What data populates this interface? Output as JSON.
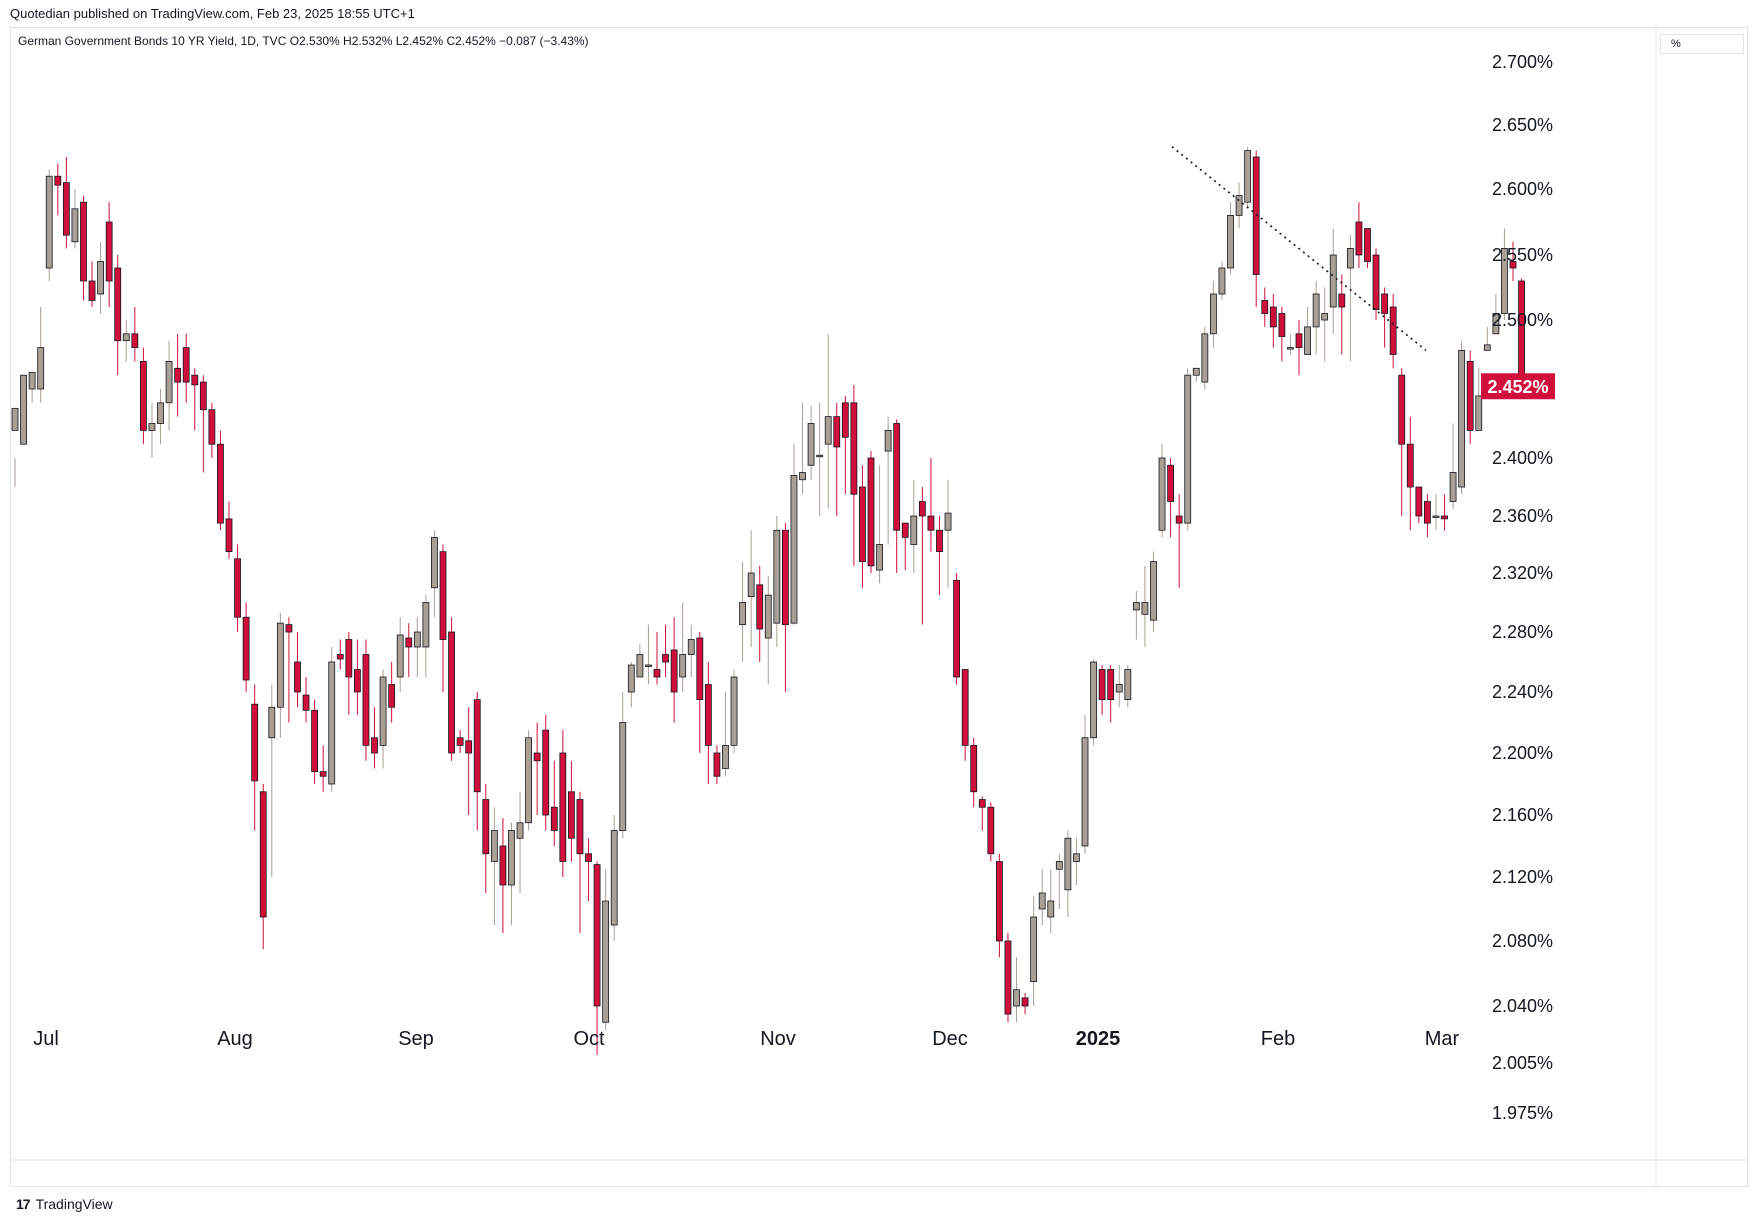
{
  "header": {
    "published": "Quotedian published on TradingView.com, Feb 23, 2025 18:55 UTC+1",
    "symbol_line": "German Government Bonds 10 YR Yield, 1D, TVC  O2.530%  H2.532%  L2.452%  C2.452%  −0.087 (−3.43%)"
  },
  "scale_button": "%",
  "footer": {
    "logo": "17",
    "brand": "TradingView"
  },
  "colors": {
    "up": "#a89f95",
    "down": "#d0103a",
    "label_bg": "#d0103a"
  },
  "chart_data": {
    "type": "candlestick",
    "y_ticks": [
      "2.700%",
      "2.650%",
      "2.600%",
      "2.550%",
      "2.500%",
      "2.400%",
      "2.360%",
      "2.320%",
      "2.280%",
      "2.240%",
      "2.200%",
      "2.160%",
      "2.120%",
      "2.080%",
      "2.040%",
      "2.005%",
      "1.975%"
    ],
    "x_ticks": [
      "Jul",
      "Aug",
      "Sep",
      "Oct",
      "Nov",
      "Dec",
      "2025",
      "Feb",
      "Mar"
    ],
    "last_price_label": "2.452%",
    "trendline": {
      "style": "dotted",
      "from": [
        2.633,
        2.633
      ],
      "to": [
        2.478,
        2.478
      ]
    },
    "candles": [
      [
        2.42,
        2.436,
        2.4,
        2.38
      ],
      [
        2.41,
        2.46,
        2.46,
        2.41
      ],
      [
        2.45,
        2.462,
        2.452,
        2.44
      ],
      [
        2.45,
        2.48,
        2.51,
        2.44
      ],
      [
        2.54,
        2.61,
        2.615,
        2.53
      ],
      [
        2.61,
        2.603,
        2.62,
        2.58
      ],
      [
        2.605,
        2.565,
        2.625,
        2.555
      ],
      [
        2.56,
        2.585,
        2.6,
        2.555
      ],
      [
        2.59,
        2.53,
        2.595,
        2.515
      ],
      [
        2.53,
        2.515,
        2.545,
        2.51
      ],
      [
        2.52,
        2.545,
        2.56,
        2.505
      ],
      [
        2.575,
        2.53,
        2.59,
        2.51
      ],
      [
        2.54,
        2.485,
        2.55,
        2.46
      ],
      [
        2.485,
        2.49,
        2.5,
        2.47
      ],
      [
        2.49,
        2.48,
        2.51,
        2.47
      ],
      [
        2.47,
        2.42,
        2.48,
        2.41
      ],
      [
        2.42,
        2.425,
        2.44,
        2.4
      ],
      [
        2.425,
        2.44,
        2.45,
        2.41
      ],
      [
        2.44,
        2.47,
        2.485,
        2.42
      ],
      [
        2.465,
        2.455,
        2.49,
        2.43
      ],
      [
        2.48,
        2.455,
        2.49,
        2.44
      ],
      [
        2.46,
        2.453,
        2.465,
        2.42
      ],
      [
        2.455,
        2.435,
        2.46,
        2.39
      ],
      [
        2.435,
        2.41,
        2.44,
        2.4
      ],
      [
        2.41,
        2.355,
        2.42,
        2.35
      ],
      [
        2.358,
        2.335,
        2.37,
        2.33
      ],
      [
        2.33,
        2.29,
        2.34,
        2.28
      ],
      [
        2.29,
        2.248,
        2.3,
        2.24
      ],
      [
        2.232,
        2.182,
        2.245,
        2.15
      ],
      [
        2.175,
        2.095,
        2.18,
        2.075
      ],
      [
        2.21,
        2.23,
        2.245,
        2.12
      ],
      [
        2.23,
        2.286,
        2.293,
        2.21
      ],
      [
        2.285,
        2.28,
        2.29,
        2.22
      ],
      [
        2.26,
        2.24,
        2.28,
        2.23
      ],
      [
        2.238,
        2.228,
        2.25,
        2.22
      ],
      [
        2.228,
        2.188,
        2.235,
        2.18
      ],
      [
        2.188,
        2.185,
        2.205,
        2.175
      ],
      [
        2.18,
        2.26,
        2.27,
        2.175
      ],
      [
        2.265,
        2.262,
        2.275,
        2.255
      ],
      [
        2.275,
        2.25,
        2.28,
        2.225
      ],
      [
        2.255,
        2.24,
        2.275,
        2.225
      ],
      [
        2.265,
        2.205,
        2.275,
        2.195
      ],
      [
        2.21,
        2.2,
        2.23,
        2.19
      ],
      [
        2.205,
        2.25,
        2.255,
        2.19
      ],
      [
        2.245,
        2.23,
        2.26,
        2.22
      ],
      [
        2.25,
        2.278,
        2.29,
        2.24
      ],
      [
        2.276,
        2.27,
        2.286,
        2.25
      ],
      [
        2.27,
        2.28,
        2.29,
        2.25
      ],
      [
        2.27,
        2.3,
        2.305,
        2.25
      ],
      [
        2.31,
        2.345,
        2.35,
        2.29
      ],
      [
        2.335,
        2.275,
        2.34,
        2.24
      ],
      [
        2.28,
        2.2,
        2.29,
        2.195
      ],
      [
        2.21,
        2.205,
        2.215,
        2.2
      ],
      [
        2.208,
        2.2,
        2.23,
        2.16
      ],
      [
        2.235,
        2.175,
        2.24,
        2.15
      ],
      [
        2.17,
        2.135,
        2.18,
        2.11
      ],
      [
        2.13,
        2.15,
        2.165,
        2.09
      ],
      [
        2.14,
        2.115,
        2.158,
        2.085
      ],
      [
        2.115,
        2.15,
        2.155,
        2.09
      ],
      [
        2.145,
        2.155,
        2.175,
        2.11
      ],
      [
        2.155,
        2.21,
        2.215,
        2.15
      ],
      [
        2.2,
        2.195,
        2.22,
        2.16
      ],
      [
        2.215,
        2.16,
        2.225,
        2.15
      ],
      [
        2.165,
        2.15,
        2.195,
        2.14
      ],
      [
        2.2,
        2.13,
        2.215,
        2.12
      ],
      [
        2.175,
        2.145,
        2.195,
        2.13
      ],
      [
        2.17,
        2.135,
        2.175,
        2.085
      ],
      [
        2.135,
        2.13,
        2.145,
        2.105
      ],
      [
        2.128,
        2.04,
        2.13,
        2.01
      ],
      [
        2.03,
        2.105,
        2.125,
        2.025
      ],
      [
        2.09,
        2.15,
        2.16,
        2.08
      ],
      [
        2.15,
        2.22,
        2.24,
        2.145
      ],
      [
        2.24,
        2.258,
        2.26,
        2.23
      ],
      [
        2.25,
        2.265,
        2.272,
        2.25
      ],
      [
        2.258,
        2.258,
        2.285,
        2.245
      ],
      [
        2.255,
        2.25,
        2.28,
        2.245
      ],
      [
        2.265,
        2.26,
        2.285,
        2.25
      ],
      [
        2.268,
        2.24,
        2.29,
        2.22
      ],
      [
        2.25,
        2.265,
        2.3,
        2.24
      ],
      [
        2.265,
        2.275,
        2.285,
        2.25
      ],
      [
        2.276,
        2.235,
        2.28,
        2.2
      ],
      [
        2.245,
        2.205,
        2.26,
        2.18
      ],
      [
        2.2,
        2.185,
        2.205,
        2.18
      ],
      [
        2.19,
        2.205,
        2.24,
        2.185
      ],
      [
        2.205,
        2.25,
        2.255,
        2.2
      ],
      [
        2.285,
        2.3,
        2.328,
        2.26
      ],
      [
        2.304,
        2.32,
        2.35,
        2.27
      ],
      [
        2.312,
        2.282,
        2.325,
        2.26
      ],
      [
        2.276,
        2.305,
        2.318,
        2.245
      ],
      [
        2.286,
        2.35,
        2.36,
        2.27
      ],
      [
        2.35,
        2.285,
        2.355,
        2.24
      ],
      [
        2.286,
        2.388,
        2.41,
        2.285
      ],
      [
        2.385,
        2.39,
        2.44,
        2.375
      ],
      [
        2.395,
        2.425,
        2.438,
        2.385
      ],
      [
        2.402,
        2.402,
        2.44,
        2.36
      ],
      [
        2.41,
        2.43,
        2.49,
        2.365
      ],
      [
        2.43,
        2.408,
        2.44,
        2.36
      ],
      [
        2.44,
        2.415,
        2.445,
        2.375
      ],
      [
        2.44,
        2.375,
        2.453,
        2.325
      ],
      [
        2.38,
        2.328,
        2.395,
        2.31
      ],
      [
        2.4,
        2.325,
        2.405,
        2.32
      ],
      [
        2.322,
        2.34,
        2.395,
        2.313
      ],
      [
        2.405,
        2.42,
        2.43,
        2.34
      ],
      [
        2.425,
        2.35,
        2.428,
        2.32
      ],
      [
        2.355,
        2.345,
        2.355,
        2.322
      ],
      [
        2.34,
        2.36,
        2.385,
        2.32
      ],
      [
        2.37,
        2.36,
        2.38,
        2.285
      ],
      [
        2.36,
        2.35,
        2.4,
        2.335
      ],
      [
        2.35,
        2.335,
        2.36,
        2.305
      ],
      [
        2.35,
        2.362,
        2.385,
        2.31
      ],
      [
        2.315,
        2.25,
        2.32,
        2.245
      ],
      [
        2.255,
        2.205,
        2.255,
        2.195
      ],
      [
        2.205,
        2.175,
        2.21,
        2.165
      ],
      [
        2.17,
        2.165,
        2.172,
        2.15
      ],
      [
        2.165,
        2.135,
        2.168,
        2.13
      ],
      [
        2.13,
        2.08,
        2.135,
        2.07
      ],
      [
        2.08,
        2.035,
        2.085,
        2.03
      ],
      [
        2.04,
        2.05,
        2.07,
        2.03
      ],
      [
        2.045,
        2.04,
        2.048,
        2.035
      ],
      [
        2.055,
        2.095,
        2.108,
        2.04
      ],
      [
        2.1,
        2.11,
        2.125,
        2.09
      ],
      [
        2.095,
        2.105,
        2.125,
        2.085
      ],
      [
        2.125,
        2.13,
        2.135,
        2.1
      ],
      [
        2.112,
        2.145,
        2.15,
        2.095
      ],
      [
        2.13,
        2.135,
        2.145,
        2.115
      ],
      [
        2.14,
        2.21,
        2.225,
        2.135
      ],
      [
        2.21,
        2.26,
        2.262,
        2.205
      ],
      [
        2.255,
        2.235,
        2.258,
        2.225
      ],
      [
        2.255,
        2.235,
        2.258,
        2.22
      ],
      [
        2.24,
        2.245,
        2.258,
        2.23
      ],
      [
        2.235,
        2.255,
        2.258,
        2.23
      ],
      [
        2.295,
        2.3,
        2.308,
        2.275
      ],
      [
        2.292,
        2.3,
        2.325,
        2.27
      ],
      [
        2.288,
        2.328,
        2.335,
        2.28
      ],
      [
        2.35,
        2.4,
        2.41,
        2.345
      ],
      [
        2.395,
        2.37,
        2.4,
        2.345
      ],
      [
        2.36,
        2.355,
        2.375,
        2.31
      ],
      [
        2.355,
        2.46,
        2.465,
        2.35
      ],
      [
        2.46,
        2.465,
        2.465,
        2.455
      ],
      [
        2.455,
        2.49,
        2.495,
        2.45
      ],
      [
        2.49,
        2.52,
        2.53,
        2.48
      ],
      [
        2.52,
        2.54,
        2.545,
        2.515
      ],
      [
        2.54,
        2.58,
        2.59,
        2.535
      ],
      [
        2.58,
        2.595,
        2.605,
        2.57
      ],
      [
        2.59,
        2.63,
        2.633,
        2.585
      ],
      [
        2.625,
        2.535,
        2.63,
        2.51
      ],
      [
        2.515,
        2.505,
        2.525,
        2.495
      ],
      [
        2.51,
        2.495,
        2.52,
        2.48
      ],
      [
        2.505,
        2.488,
        2.51,
        2.47
      ],
      [
        2.48,
        2.48,
        2.49,
        2.475
      ],
      [
        2.49,
        2.48,
        2.5,
        2.46
      ],
      [
        2.475,
        2.495,
        2.51,
        2.475
      ],
      [
        2.495,
        2.52,
        2.53,
        2.475
      ],
      [
        2.5,
        2.505,
        2.525,
        2.47
      ],
      [
        2.51,
        2.55,
        2.57,
        2.49
      ],
      [
        2.52,
        2.51,
        2.535,
        2.475
      ],
      [
        2.54,
        2.555,
        2.565,
        2.47
      ],
      [
        2.575,
        2.55,
        2.59,
        2.54
      ],
      [
        2.57,
        2.545,
        2.57,
        2.54
      ],
      [
        2.55,
        2.508,
        2.555,
        2.5
      ],
      [
        2.52,
        2.505,
        2.525,
        2.48
      ],
      [
        2.51,
        2.475,
        2.52,
        2.465
      ],
      [
        2.46,
        2.41,
        2.465,
        2.36
      ],
      [
        2.41,
        2.38,
        2.43,
        2.35
      ],
      [
        2.38,
        2.36,
        2.38,
        2.355
      ],
      [
        2.37,
        2.355,
        2.375,
        2.345
      ],
      [
        2.36,
        2.36,
        2.375,
        2.35
      ],
      [
        2.36,
        2.358,
        2.375,
        2.35
      ],
      [
        2.37,
        2.39,
        2.425,
        2.365
      ],
      [
        2.38,
        2.478,
        2.485,
        2.375
      ],
      [
        2.47,
        2.42,
        2.478,
        2.41
      ],
      [
        2.42,
        2.445,
        2.465,
        2.42
      ],
      [
        2.478,
        2.482,
        2.495,
        2.478
      ],
      [
        2.49,
        2.505,
        2.52,
        2.49
      ],
      [
        2.505,
        2.555,
        2.57,
        2.5
      ],
      [
        2.545,
        2.54,
        2.56,
        2.53
      ],
      [
        2.53,
        2.452,
        2.532,
        2.452
      ]
    ]
  }
}
